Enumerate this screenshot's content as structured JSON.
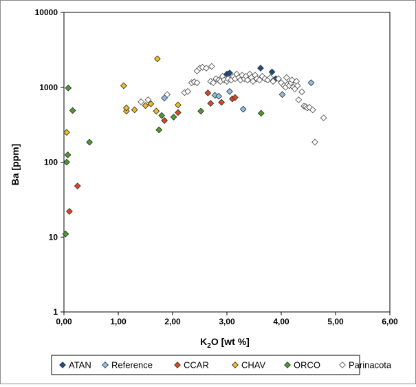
{
  "chart_data": {
    "type": "scatter",
    "title": "",
    "xlabel": {
      "main": "K",
      "sub": "2",
      "rest": "O [wt %]"
    },
    "ylabel": "Ba [ppm]",
    "xlim": [
      0,
      6
    ],
    "ylim": [
      1,
      10000
    ],
    "yscale": "log",
    "grid": false,
    "legend_position": "bottom",
    "x_ticks": [
      "0,00",
      "1,00",
      "2,00",
      "3,00",
      "4,00",
      "5,00",
      "6,00"
    ],
    "y_ticks": [
      "1",
      "10",
      "100",
      "1000",
      "10000"
    ],
    "series": [
      {
        "name": "ATAN",
        "color": "#1f4e8c",
        "marker": "diamond",
        "points": [
          [
            3.0,
            1500
          ],
          [
            3.05,
            1550
          ],
          [
            3.62,
            1800
          ],
          [
            3.83,
            1600
          ],
          [
            3.9,
            1300
          ]
        ]
      },
      {
        "name": "Reference",
        "color": "#8fc1ec",
        "marker": "diamond",
        "points": [
          [
            1.85,
            720
          ],
          [
            2.78,
            780
          ],
          [
            2.85,
            760
          ],
          [
            3.05,
            880
          ],
          [
            3.3,
            510
          ],
          [
            4.02,
            800
          ],
          [
            4.55,
            1150
          ]
        ]
      },
      {
        "name": "CCAR",
        "color": "#e0461e",
        "marker": "diamond",
        "points": [
          [
            0.1,
            22
          ],
          [
            0.25,
            48
          ],
          [
            1.85,
            360
          ],
          [
            2.1,
            460
          ],
          [
            2.65,
            840
          ],
          [
            2.7,
            610
          ],
          [
            2.9,
            630
          ],
          [
            3.1,
            700
          ],
          [
            3.15,
            730
          ]
        ]
      },
      {
        "name": "CHAV",
        "color": "#f0c020",
        "marker": "diamond",
        "points": [
          [
            0.05,
            250
          ],
          [
            1.1,
            1050
          ],
          [
            1.15,
            480
          ],
          [
            1.15,
            530
          ],
          [
            1.3,
            500
          ],
          [
            1.5,
            570
          ],
          [
            1.6,
            600
          ],
          [
            1.7,
            480
          ],
          [
            1.72,
            2400
          ],
          [
            2.1,
            580
          ]
        ]
      },
      {
        "name": "ORCO",
        "color": "#4f9a2e",
        "marker": "diamond",
        "points": [
          [
            0.03,
            11
          ],
          [
            0.05,
            100
          ],
          [
            0.07,
            125
          ],
          [
            0.08,
            980
          ],
          [
            0.16,
            490
          ],
          [
            0.47,
            185
          ],
          [
            1.75,
            270
          ],
          [
            1.8,
            420
          ],
          [
            2.02,
            400
          ],
          [
            2.52,
            480
          ],
          [
            3.63,
            450
          ]
        ]
      },
      {
        "name": "Parinacota",
        "color": "#ffffff",
        "marker": "diamond",
        "points": [
          [
            1.42,
            640
          ],
          [
            1.55,
            680
          ],
          [
            1.9,
            800
          ],
          [
            2.22,
            850
          ],
          [
            2.28,
            880
          ],
          [
            2.35,
            1150
          ],
          [
            2.4,
            1180
          ],
          [
            2.45,
            1150
          ],
          [
            2.45,
            1650
          ],
          [
            2.5,
            1800
          ],
          [
            2.55,
            1850
          ],
          [
            2.62,
            1800
          ],
          [
            2.72,
            1900
          ],
          [
            2.7,
            1200
          ],
          [
            2.75,
            1150
          ],
          [
            2.8,
            1300
          ],
          [
            2.85,
            1250
          ],
          [
            2.88,
            1200
          ],
          [
            2.92,
            1400
          ],
          [
            2.95,
            1250
          ],
          [
            3.0,
            1200
          ],
          [
            3.02,
            1300
          ],
          [
            3.08,
            1250
          ],
          [
            3.12,
            1380
          ],
          [
            3.15,
            1300
          ],
          [
            3.18,
            1500
          ],
          [
            3.22,
            1350
          ],
          [
            3.25,
            1250
          ],
          [
            3.28,
            1450
          ],
          [
            3.32,
            1300
          ],
          [
            3.35,
            1400
          ],
          [
            3.38,
            1250
          ],
          [
            3.42,
            1500
          ],
          [
            3.45,
            1350
          ],
          [
            3.48,
            1200
          ],
          [
            3.52,
            1450
          ],
          [
            3.55,
            1300
          ],
          [
            3.6,
            1250
          ],
          [
            3.65,
            1400
          ],
          [
            3.7,
            1300
          ],
          [
            3.75,
            1250
          ],
          [
            3.8,
            1350
          ],
          [
            3.85,
            1200
          ],
          [
            3.95,
            1300
          ],
          [
            4.0,
            1150
          ],
          [
            4.05,
            1050
          ],
          [
            4.08,
            1000
          ],
          [
            4.1,
            1350
          ],
          [
            4.12,
            1100
          ],
          [
            4.15,
            1050
          ],
          [
            4.18,
            1150
          ],
          [
            4.2,
            1250
          ],
          [
            4.22,
            1000
          ],
          [
            4.25,
            950
          ],
          [
            4.28,
            1200
          ],
          [
            4.3,
            1050
          ],
          [
            4.32,
            680
          ],
          [
            4.38,
            870
          ],
          [
            4.42,
            560
          ],
          [
            4.45,
            550
          ],
          [
            4.48,
            530
          ],
          [
            4.52,
            540
          ],
          [
            4.58,
            500
          ],
          [
            4.62,
            185
          ],
          [
            4.78,
            390
          ]
        ]
      }
    ]
  }
}
